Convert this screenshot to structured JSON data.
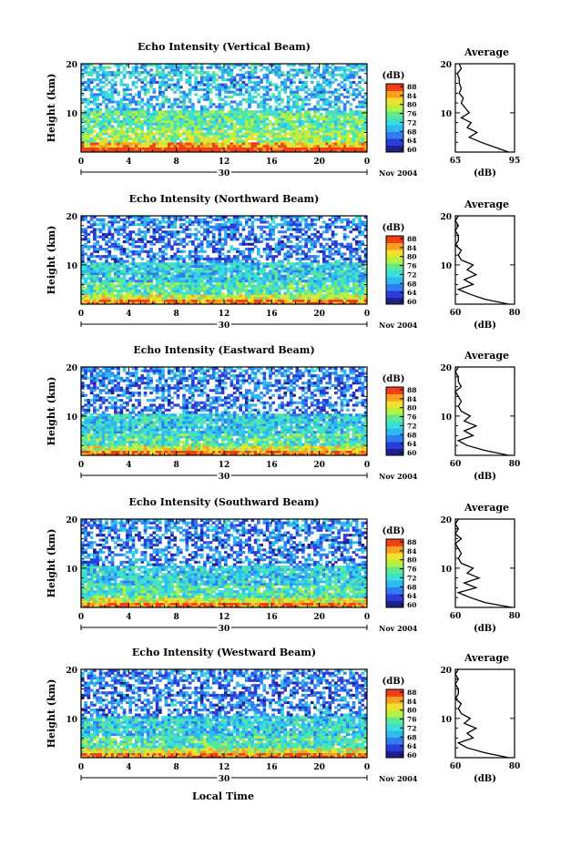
{
  "footer": {
    "xlabel": "Local Time"
  },
  "colorbar": {
    "unit": "(dB)",
    "ticks": [
      "60",
      "64",
      "68",
      "72",
      "76",
      "80",
      "84",
      "88"
    ],
    "stops": [
      "#20208c",
      "#2c3cd8",
      "#2f7ef0",
      "#30b8f0",
      "#3ae0d8",
      "#60e890",
      "#b8f040",
      "#f0e030",
      "#f8a020",
      "#f04018"
    ]
  },
  "chart_data": [
    {
      "type": "heatmap",
      "title": "Echo Intensity (Vertical Beam)",
      "ylabel": "Height (km)",
      "ylim": [
        2,
        20
      ],
      "yticks": [
        "10",
        "20"
      ],
      "xlim": [
        0,
        24
      ],
      "xticks": [
        "0",
        "4",
        "8",
        "12",
        "16",
        "20",
        "0"
      ],
      "date_day": "30",
      "date_month": "Nov 2004",
      "average": {
        "title": "Average",
        "xlabel": "(dB)",
        "xlim": [
          65,
          95
        ],
        "xticks": [
          "65",
          "95"
        ],
        "yticks": [
          "10",
          "20"
        ],
        "profile": [
          [
            92,
            2
          ],
          [
            85,
            3
          ],
          [
            78,
            4
          ],
          [
            72,
            5
          ],
          [
            76,
            6
          ],
          [
            71,
            7
          ],
          [
            73,
            8
          ],
          [
            68,
            9
          ],
          [
            72,
            10
          ],
          [
            70,
            11
          ],
          [
            68,
            12
          ],
          [
            69,
            13
          ],
          [
            67,
            14
          ],
          [
            68,
            15
          ],
          [
            67,
            16
          ],
          [
            67,
            17
          ],
          [
            66,
            18
          ],
          [
            68,
            19
          ],
          [
            67,
            20
          ]
        ]
      }
    },
    {
      "type": "heatmap",
      "title": "Echo Intensity (Northward Beam)",
      "ylabel": "Height (km)",
      "ylim": [
        2,
        20
      ],
      "yticks": [
        "10",
        "20"
      ],
      "xlim": [
        0,
        24
      ],
      "xticks": [
        "0",
        "4",
        "8",
        "12",
        "16",
        "20",
        "0"
      ],
      "date_day": "30",
      "date_month": "Nov 2004",
      "average": {
        "title": "Average",
        "xlabel": "(dB)",
        "xlim": [
          60,
          80
        ],
        "xticks": [
          "60",
          "80"
        ],
        "yticks": [
          "10",
          "20"
        ],
        "profile": [
          [
            78,
            2
          ],
          [
            70,
            3
          ],
          [
            65,
            4
          ],
          [
            61,
            5
          ],
          [
            66,
            6
          ],
          [
            63,
            7
          ],
          [
            67,
            8
          ],
          [
            64,
            9
          ],
          [
            66,
            10
          ],
          [
            62,
            11
          ],
          [
            61,
            12
          ],
          [
            62,
            13
          ],
          [
            60,
            14
          ],
          [
            61,
            15
          ],
          [
            61,
            16
          ],
          [
            60,
            17
          ],
          [
            61,
            18
          ],
          [
            60,
            19
          ],
          [
            61,
            20
          ]
        ]
      }
    },
    {
      "type": "heatmap",
      "title": "Echo Intensity (Eastward Beam)",
      "ylabel": "Height (km)",
      "ylim": [
        2,
        20
      ],
      "yticks": [
        "10",
        "20"
      ],
      "xlim": [
        0,
        24
      ],
      "xticks": [
        "0",
        "4",
        "8",
        "12",
        "16",
        "20",
        "0"
      ],
      "date_day": "30",
      "date_month": "Nov 2004",
      "average": {
        "title": "Average",
        "xlabel": "(dB)",
        "xlim": [
          60,
          80
        ],
        "xticks": [
          "60",
          "80"
        ],
        "yticks": [
          "10",
          "20"
        ],
        "profile": [
          [
            78,
            2
          ],
          [
            70,
            3
          ],
          [
            64,
            4
          ],
          [
            61,
            5
          ],
          [
            66,
            6
          ],
          [
            63,
            7
          ],
          [
            67,
            8
          ],
          [
            63,
            9
          ],
          [
            65,
            10
          ],
          [
            62,
            11
          ],
          [
            61,
            12
          ],
          [
            62,
            13
          ],
          [
            61,
            14
          ],
          [
            60,
            15
          ],
          [
            62,
            16
          ],
          [
            61,
            17
          ],
          [
            61,
            18
          ],
          [
            60,
            19
          ],
          [
            61,
            20
          ]
        ]
      }
    },
    {
      "type": "heatmap",
      "title": "Echo Intensity (Southward Beam)",
      "ylabel": "Height (km)",
      "ylim": [
        2,
        20
      ],
      "yticks": [
        "10",
        "20"
      ],
      "xlim": [
        0,
        24
      ],
      "xticks": [
        "0",
        "4",
        "8",
        "12",
        "16",
        "20",
        "0"
      ],
      "date_day": "30",
      "date_month": "Nov 2004",
      "average": {
        "title": "Average",
        "xlabel": "(dB)",
        "xlim": [
          60,
          80
        ],
        "xticks": [
          "60",
          "80"
        ],
        "yticks": [
          "10",
          "20"
        ],
        "profile": [
          [
            79,
            2
          ],
          [
            70,
            3
          ],
          [
            65,
            4
          ],
          [
            61,
            5
          ],
          [
            67,
            6
          ],
          [
            63,
            7
          ],
          [
            68,
            8
          ],
          [
            64,
            9
          ],
          [
            66,
            10
          ],
          [
            62,
            11
          ],
          [
            61,
            12
          ],
          [
            62,
            13
          ],
          [
            61,
            14
          ],
          [
            60,
            15
          ],
          [
            62,
            16
          ],
          [
            60,
            17
          ],
          [
            61,
            18
          ],
          [
            60,
            19
          ],
          [
            61,
            20
          ]
        ]
      }
    },
    {
      "type": "heatmap",
      "title": "Echo Intensity (Westward Beam)",
      "ylabel": "Height (km)",
      "ylim": [
        2,
        20
      ],
      "yticks": [
        "10",
        "20"
      ],
      "xlim": [
        0,
        24
      ],
      "xticks": [
        "0",
        "4",
        "8",
        "12",
        "16",
        "20",
        "0"
      ],
      "date_day": "30",
      "date_month": "Nov 2004",
      "average": {
        "title": "Average",
        "xlabel": "(dB)",
        "xlim": [
          60,
          80
        ],
        "xticks": [
          "60",
          "80"
        ],
        "yticks": [
          "10",
          "20"
        ],
        "profile": [
          [
            78,
            2
          ],
          [
            70,
            3
          ],
          [
            64,
            4
          ],
          [
            61,
            5
          ],
          [
            66,
            6
          ],
          [
            64,
            7
          ],
          [
            67,
            8
          ],
          [
            63,
            9
          ],
          [
            65,
            10
          ],
          [
            62,
            11
          ],
          [
            61,
            12
          ],
          [
            62,
            13
          ],
          [
            60,
            14
          ],
          [
            61,
            15
          ],
          [
            61,
            16
          ],
          [
            60,
            17
          ],
          [
            61,
            18
          ],
          [
            60,
            19
          ],
          [
            61,
            20
          ]
        ]
      }
    }
  ]
}
